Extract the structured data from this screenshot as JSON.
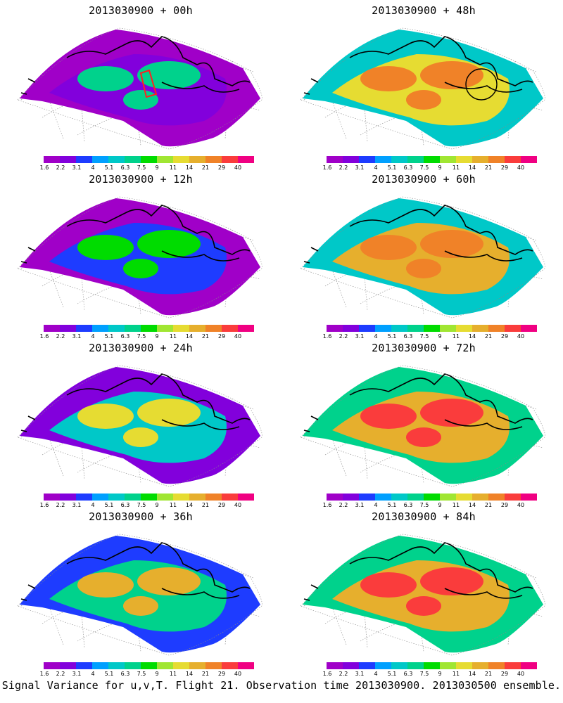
{
  "panels": [
    {
      "title": "2013030900 + 00h",
      "level": 0,
      "flight_box": true,
      "circle": false
    },
    {
      "title": "2013030900 + 48h",
      "level": 4,
      "flight_box": false,
      "circle": true
    },
    {
      "title": "2013030900 + 12h",
      "level": 1,
      "flight_box": false,
      "circle": false
    },
    {
      "title": "2013030900 + 60h",
      "level": 5,
      "flight_box": false,
      "circle": false
    },
    {
      "title": "2013030900 + 24h",
      "level": 2,
      "flight_box": false,
      "circle": false
    },
    {
      "title": "2013030900 + 72h",
      "level": 6,
      "flight_box": false,
      "circle": false
    },
    {
      "title": "2013030900 + 36h",
      "level": 3,
      "flight_box": false,
      "circle": false
    },
    {
      "title": "2013030900 + 84h",
      "level": 7,
      "flight_box": false,
      "circle": false
    }
  ],
  "colorbar": {
    "labels": [
      "1.6",
      "2.2",
      "3.1",
      "4",
      "5.1",
      "6.3",
      "7.5",
      "9",
      "11",
      "14",
      "21",
      "29",
      "40"
    ],
    "colors": [
      "#a000c8",
      "#8200dc",
      "#1e3cff",
      "#00a0ff",
      "#00c8c8",
      "#00d28c",
      "#00dc00",
      "#a0e632",
      "#e6dc32",
      "#e6af2d",
      "#f08228",
      "#fa3c3c",
      "#f00082"
    ]
  },
  "caption": "Signal Variance for u,v,T. Flight 21. Observation time 2013030900. 2013030500 ensemble."
}
